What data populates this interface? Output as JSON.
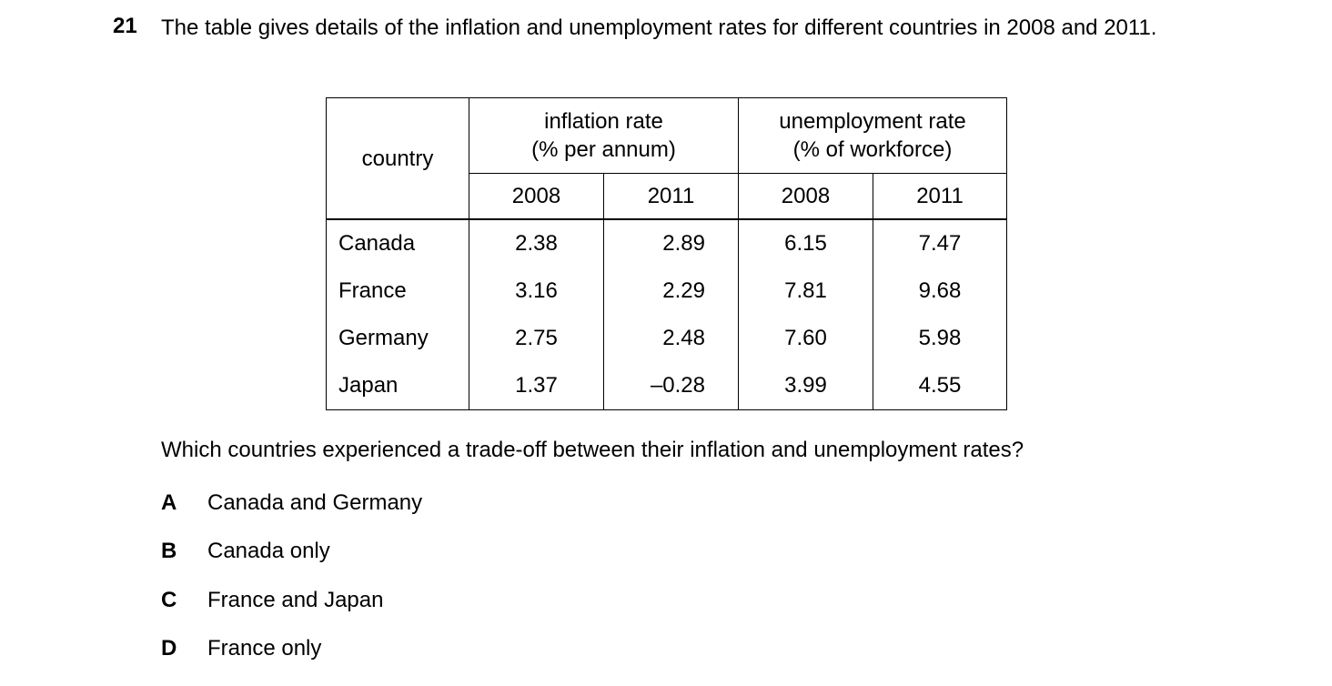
{
  "question": {
    "number": "21",
    "text": "The table gives details of the inflation and unemployment rates for different countries in 2008 and 2011."
  },
  "table": {
    "header": {
      "country": "country",
      "groups": [
        {
          "lines": [
            "inflation rate",
            "(% per annum)"
          ],
          "years": [
            "2008",
            "2011"
          ]
        },
        {
          "lines": [
            "unemployment rate",
            "(% of workforce)"
          ],
          "years": [
            "2008",
            "2011"
          ]
        }
      ]
    },
    "rows": [
      [
        "Canada",
        "2.38",
        "2.89",
        "6.15",
        "7.47"
      ],
      [
        "France",
        "3.16",
        "2.29",
        "7.81",
        "9.68"
      ],
      [
        "Germany",
        "2.75",
        "2.48",
        "7.60",
        "5.98"
      ],
      [
        "Japan",
        "1.37",
        "–0.28",
        "3.99",
        "4.55"
      ]
    ]
  },
  "prompt": "Which countries experienced a trade-off between their inflation and unemployment rates?",
  "options": [
    {
      "letter": "A",
      "text": "Canada and Germany"
    },
    {
      "letter": "B",
      "text": "Canada only"
    },
    {
      "letter": "C",
      "text": "France and Japan"
    },
    {
      "letter": "D",
      "text": "France only"
    }
  ]
}
